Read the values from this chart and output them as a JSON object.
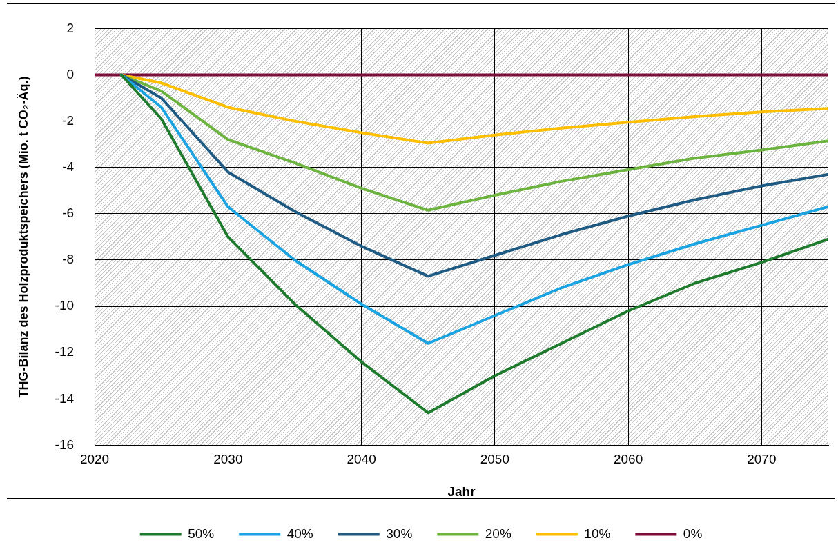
{
  "chart_data": {
    "type": "line",
    "xlabel": "Jahr",
    "ylabel": "THG-Bilanz des Holzproduktspeichers (Mio. t CO₂-Äq.)",
    "x": [
      2022,
      2025,
      2030,
      2035,
      2040,
      2045,
      2050,
      2055,
      2060,
      2065,
      2070,
      2075
    ],
    "series": [
      {
        "name": "50%",
        "color": "#1e7b2e",
        "values": [
          0,
          -1.9,
          -7.0,
          -9.9,
          -12.4,
          -14.6,
          -13.0,
          -11.6,
          -10.2,
          -9.0,
          -8.1,
          -7.1
        ]
      },
      {
        "name": "40%",
        "color": "#1aa3e0",
        "values": [
          0,
          -1.4,
          -5.7,
          -8.0,
          -9.9,
          -11.6,
          -10.4,
          -9.2,
          -8.2,
          -7.3,
          -6.5,
          -5.7
        ]
      },
      {
        "name": "30%",
        "color": "#1f5a82",
        "values": [
          0,
          -1.0,
          -4.2,
          -5.9,
          -7.4,
          -8.7,
          -7.8,
          -6.9,
          -6.1,
          -5.4,
          -4.8,
          -4.3
        ]
      },
      {
        "name": "20%",
        "color": "#6db33f",
        "values": [
          0,
          -0.7,
          -2.8,
          -3.8,
          -4.9,
          -5.85,
          -5.2,
          -4.6,
          -4.1,
          -3.6,
          -3.25,
          -2.85
        ]
      },
      {
        "name": "10%",
        "color": "#ffbf00",
        "values": [
          0,
          -0.35,
          -1.4,
          -2.0,
          -2.5,
          -2.95,
          -2.6,
          -2.3,
          -2.05,
          -1.8,
          -1.6,
          -1.45
        ]
      },
      {
        "name": "0%",
        "color": "#7b0f3c",
        "x": [
          2020,
          2075
        ],
        "values": [
          0,
          0
        ]
      }
    ],
    "xlim": [
      2020,
      2075
    ],
    "xticks": [
      2020,
      2030,
      2040,
      2050,
      2060,
      2070
    ],
    "ylim": [
      -16,
      2
    ],
    "yticks": [
      -16,
      -14,
      -12,
      -10,
      -8,
      -6,
      -4,
      -2,
      0,
      2
    ],
    "grid": true,
    "legend": "bottom",
    "marker": "none",
    "line_style": "solid"
  }
}
